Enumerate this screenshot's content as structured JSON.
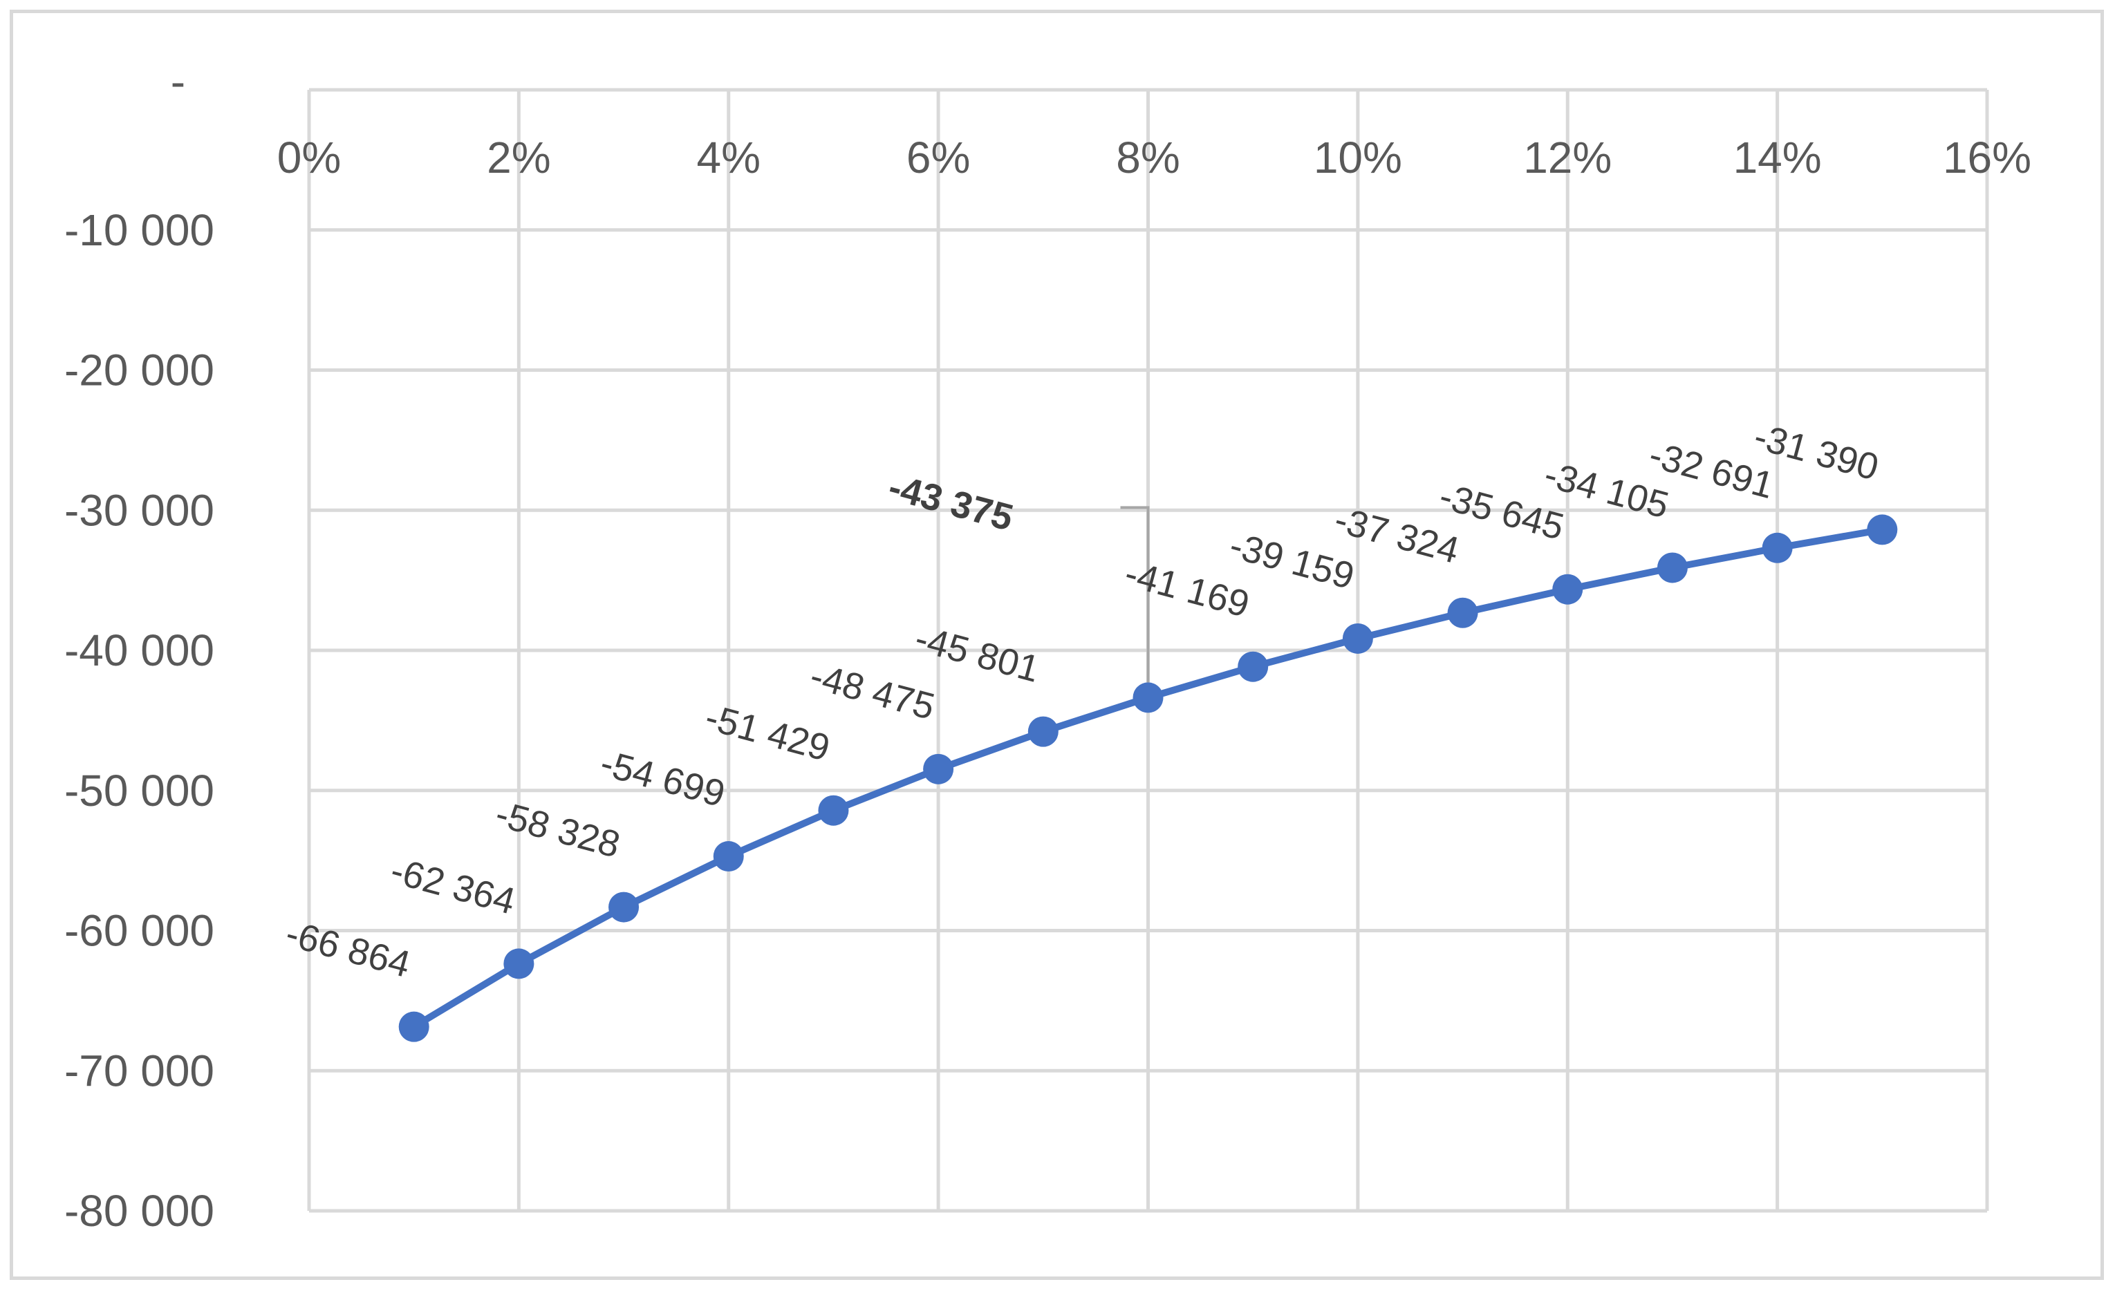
{
  "chart_data": {
    "type": "line",
    "title": "",
    "xlabel": "",
    "ylabel": "",
    "xlim": [
      0,
      0.16
    ],
    "ylim": [
      -80000,
      0
    ],
    "x_ticks": [
      0,
      0.02,
      0.04,
      0.06,
      0.08,
      0.1,
      0.12,
      0.14,
      0.16
    ],
    "x_tick_labels": [
      "0%",
      "2%",
      "4%",
      "6%",
      "8%",
      "10%",
      "12%",
      "14%",
      "16%"
    ],
    "y_ticks": [
      0,
      -10000,
      -20000,
      -30000,
      -40000,
      -50000,
      -60000,
      -70000,
      -80000
    ],
    "y_tick_labels": [
      "-",
      "-10 000",
      "-20 000",
      "-30 000",
      "-40 000",
      "-50 000",
      "-60 000",
      "-70 000",
      "-80 000"
    ],
    "x_axis_position": "top",
    "grid": true,
    "legend": "none",
    "series": [
      {
        "color": "#4472c4",
        "x": [
          0.01,
          0.02,
          0.03,
          0.04,
          0.05,
          0.06,
          0.07,
          0.08,
          0.09,
          0.1,
          0.11,
          0.12,
          0.13,
          0.14,
          0.15
        ],
        "values": [
          -66864,
          -62364,
          -58328,
          -54699,
          -51429,
          -48475,
          -45801,
          -43375,
          -41169,
          -39159,
          -37324,
          -35645,
          -34105,
          -32691,
          -31390
        ],
        "labels": [
          "-66 864",
          "-62 364",
          "-58 328",
          "-54 699",
          "-51 429",
          "-48 475",
          "-45 801",
          "-43 375",
          "-41 169",
          "-39 159",
          "-37 324",
          "-35 645",
          "-34 105",
          "-32 691",
          "-31 390"
        ],
        "highlighted_index": 7
      }
    ],
    "colors": {
      "grid": "#d9d9d9",
      "axis_text": "#595959",
      "label_text": "#404040",
      "leader_line": "#a6a6a6"
    }
  }
}
